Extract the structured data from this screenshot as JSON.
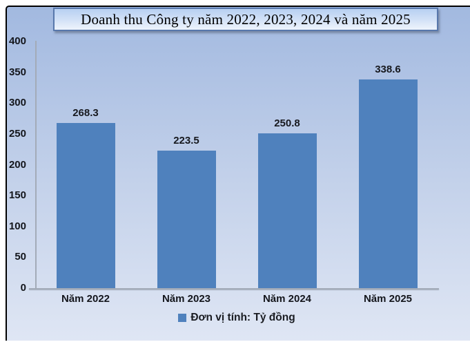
{
  "chart_data": {
    "type": "bar",
    "title": "Doanh thu Công ty năm 2022, 2023, 2024 và năm 2025",
    "categories": [
      "Năm 2022",
      "Năm 2023",
      "Năm 2024",
      "Năm 2025"
    ],
    "values": [
      268.3,
      223.5,
      250.8,
      338.6
    ],
    "value_labels": [
      "268.3",
      "223.5",
      "250.8",
      "338.6"
    ],
    "ylim": [
      0,
      400
    ],
    "ytick_interval": 50,
    "yticks": [
      "400",
      "350",
      "300",
      "250",
      "200",
      "150",
      "100",
      "50",
      "0"
    ],
    "grid": false,
    "bar_color": "#4f81bd",
    "axis_color": "#a3abb8",
    "legend": {
      "label": "Đơn vị tính: Tỷ đồng",
      "position": "bottom",
      "marker_color": "#4f81bd"
    },
    "colors": {
      "panel_gradient_top": "#a2b9e0",
      "panel_gradient_bottom": "#dfe6f4",
      "title_box_border": "#5878ac",
      "title_box_fill_top": "#b7d0f2",
      "title_box_fill_bottom": "#eef4fc",
      "outer_border": "#000000"
    }
  }
}
